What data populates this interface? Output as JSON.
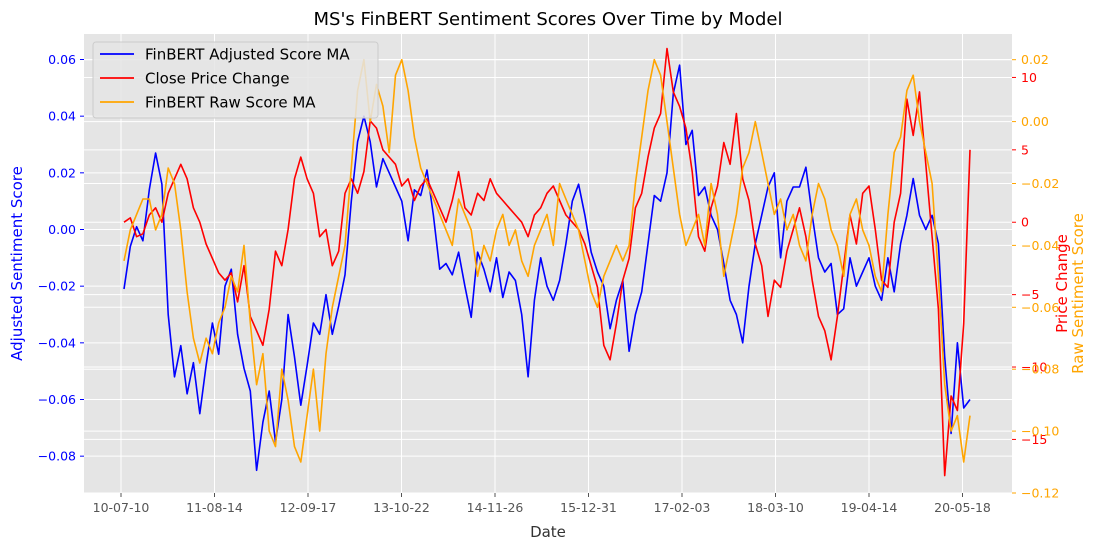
{
  "chart_data": {
    "type": "line",
    "title": "MS's FinBERT Sentiment Scores Over Time by Model",
    "xlabel": "Date",
    "ylabel_left": "Adjusted Sentiment Score",
    "ylabel_right_price": "Price Change",
    "ylabel_right_raw": "Raw Sentiment Score",
    "x_ticks": [
      "10-07-10",
      "11-08-14",
      "12-09-17",
      "13-10-22",
      "14-11-26",
      "15-12-31",
      "17-02-03",
      "18-03-10",
      "19-04-14",
      "20-05-18"
    ],
    "y_left_ticks": [
      "−0.08",
      "−0.06",
      "−0.04",
      "−0.02",
      "0.00",
      "0.02",
      "0.04",
      "0.06"
    ],
    "y_price_ticks": [
      "−15",
      "−10",
      "−5",
      "0",
      "5",
      "10"
    ],
    "y_raw_ticks": [
      "−0.12",
      "−0.10",
      "−0.08",
      "−0.06",
      "−0.04",
      "−0.02",
      "0.00",
      "0.02"
    ],
    "ylim_left": [
      -0.093,
      0.069
    ],
    "ylim_price": [
      -18.7,
      13.0
    ],
    "ylim_raw": [
      -0.12,
      0.0283
    ],
    "grid": true,
    "legend_position": "top-left",
    "colors": {
      "adjusted": "#0000ff",
      "price": "#ff0000",
      "raw": "#ffa500",
      "plot_bg": "#e5e5e5"
    },
    "series": [
      {
        "name": "FinBERT Adjusted Score MA",
        "key": "adjusted",
        "values": [
          -0.021,
          -0.006,
          0.001,
          -0.004,
          0.014,
          0.027,
          0.016,
          -0.03,
          -0.052,
          -0.041,
          -0.058,
          -0.047,
          -0.065,
          -0.048,
          -0.033,
          -0.044,
          -0.02,
          -0.014,
          -0.037,
          -0.049,
          -0.057,
          -0.085,
          -0.068,
          -0.057,
          -0.075,
          -0.06,
          -0.03,
          -0.045,
          -0.062,
          -0.048,
          -0.033,
          -0.037,
          -0.023,
          -0.037,
          -0.027,
          -0.016,
          0.01,
          0.031,
          0.04,
          0.031,
          0.015,
          0.025,
          0.02,
          0.015,
          0.01,
          -0.004,
          0.014,
          0.012,
          0.021,
          0.005,
          -0.014,
          -0.012,
          -0.016,
          -0.008,
          -0.02,
          -0.031,
          -0.008,
          -0.014,
          -0.022,
          -0.01,
          -0.024,
          -0.015,
          -0.018,
          -0.03,
          -0.052,
          -0.025,
          -0.01,
          -0.02,
          -0.025,
          -0.018,
          -0.005,
          0.01,
          0.016,
          0.005,
          -0.008,
          -0.015,
          -0.02,
          -0.035,
          -0.025,
          -0.018,
          -0.043,
          -0.03,
          -0.022,
          -0.005,
          0.012,
          0.01,
          0.02,
          0.048,
          0.058,
          0.03,
          0.035,
          0.012,
          0.015,
          0.005,
          0.0,
          -0.012,
          -0.025,
          -0.03,
          -0.04,
          -0.02,
          -0.005,
          0.005,
          0.015,
          0.02,
          -0.01,
          0.01,
          0.015,
          0.015,
          0.022,
          0.005,
          -0.01,
          -0.015,
          -0.012,
          -0.03,
          -0.028,
          -0.01,
          -0.02,
          -0.015,
          -0.01,
          -0.02,
          -0.025,
          -0.01,
          -0.022,
          -0.005,
          0.005,
          0.018,
          0.005,
          0.0,
          0.005,
          -0.005,
          -0.045,
          -0.072,
          -0.04,
          -0.063,
          -0.06
        ],
        "x_start": "10-07-10",
        "x_end": "20-06-04"
      },
      {
        "name": "Close Price Change",
        "key": "price",
        "values": [
          0.0,
          0.3,
          -1.0,
          -0.8,
          0.5,
          1.0,
          0.0,
          2.0,
          3.0,
          4.0,
          3.0,
          1.0,
          0.0,
          -1.5,
          -2.5,
          -3.5,
          -4.0,
          -3.5,
          -5.5,
          -3.0,
          -6.5,
          -7.5,
          -8.5,
          -6.0,
          -2.0,
          -3.0,
          -0.5,
          3.0,
          4.5,
          3.0,
          2.0,
          -1.0,
          -0.5,
          -3.0,
          -2.0,
          2.0,
          3.0,
          2.0,
          3.5,
          7.0,
          6.5,
          5.0,
          4.5,
          4.0,
          2.5,
          3.0,
          1.5,
          2.5,
          3.0,
          2.0,
          1.0,
          0.0,
          1.5,
          3.5,
          1.0,
          0.5,
          2.0,
          1.5,
          3.0,
          2.0,
          1.5,
          1.0,
          0.5,
          0.0,
          -1.0,
          0.5,
          1.0,
          2.0,
          2.5,
          1.5,
          0.5,
          0.0,
          -0.5,
          -1.5,
          -3.0,
          -4.5,
          -8.5,
          -9.5,
          -7.0,
          -4.0,
          -2.5,
          1.0,
          2.0,
          4.5,
          6.5,
          7.5,
          12.0,
          9.0,
          8.0,
          6.5,
          3.5,
          -1.0,
          -2.0,
          1.0,
          2.5,
          5.5,
          4.0,
          7.5,
          3.0,
          1.5,
          -1.5,
          -3.0,
          -6.5,
          -4.0,
          -4.5,
          -2.0,
          -0.5,
          1.0,
          -1.0,
          -4.0,
          -6.5,
          -7.5,
          -9.5,
          -6.5,
          -3.0,
          0.5,
          -1.5,
          2.0,
          2.5,
          -0.5,
          -4.0,
          -4.5,
          0.0,
          2.0,
          8.5,
          6.0,
          9.0,
          4.0,
          -1.0,
          -6.0,
          -17.5,
          -12.0,
          -13.0,
          -7.0,
          5.0
        ],
        "x_start": "10-07-10",
        "x_end": "20-06-04"
      },
      {
        "name": "FinBERT Raw Score MA",
        "key": "raw",
        "values": [
          -0.045,
          -0.035,
          -0.03,
          -0.025,
          -0.025,
          -0.035,
          -0.03,
          -0.015,
          -0.02,
          -0.035,
          -0.055,
          -0.07,
          -0.078,
          -0.07,
          -0.075,
          -0.065,
          -0.06,
          -0.05,
          -0.055,
          -0.04,
          -0.065,
          -0.085,
          -0.075,
          -0.1,
          -0.105,
          -0.08,
          -0.09,
          -0.105,
          -0.11,
          -0.095,
          -0.08,
          -0.1,
          -0.075,
          -0.06,
          -0.05,
          -0.04,
          -0.015,
          0.01,
          0.02,
          0.0,
          0.012,
          0.005,
          -0.01,
          0.015,
          0.02,
          0.01,
          -0.005,
          -0.015,
          -0.02,
          -0.025,
          -0.03,
          -0.035,
          -0.04,
          -0.025,
          -0.03,
          -0.035,
          -0.05,
          -0.04,
          -0.045,
          -0.035,
          -0.03,
          -0.04,
          -0.035,
          -0.045,
          -0.05,
          -0.04,
          -0.035,
          -0.03,
          -0.04,
          -0.02,
          -0.025,
          -0.03,
          -0.035,
          -0.045,
          -0.055,
          -0.06,
          -0.05,
          -0.045,
          -0.04,
          -0.045,
          -0.04,
          -0.02,
          -0.005,
          0.01,
          0.02,
          0.015,
          0.0,
          -0.015,
          -0.03,
          -0.04,
          -0.035,
          -0.03,
          -0.04,
          -0.02,
          -0.03,
          -0.05,
          -0.04,
          -0.03,
          -0.015,
          -0.01,
          0.0,
          -0.01,
          -0.02,
          -0.03,
          -0.025,
          -0.035,
          -0.03,
          -0.04,
          -0.045,
          -0.03,
          -0.02,
          -0.025,
          -0.035,
          -0.04,
          -0.05,
          -0.03,
          -0.025,
          -0.035,
          -0.04,
          -0.05,
          -0.055,
          -0.03,
          -0.01,
          -0.005,
          0.01,
          0.015,
          0.0,
          -0.01,
          -0.02,
          -0.05,
          -0.085,
          -0.1,
          -0.095,
          -0.11,
          -0.095
        ]
      }
    ]
  }
}
